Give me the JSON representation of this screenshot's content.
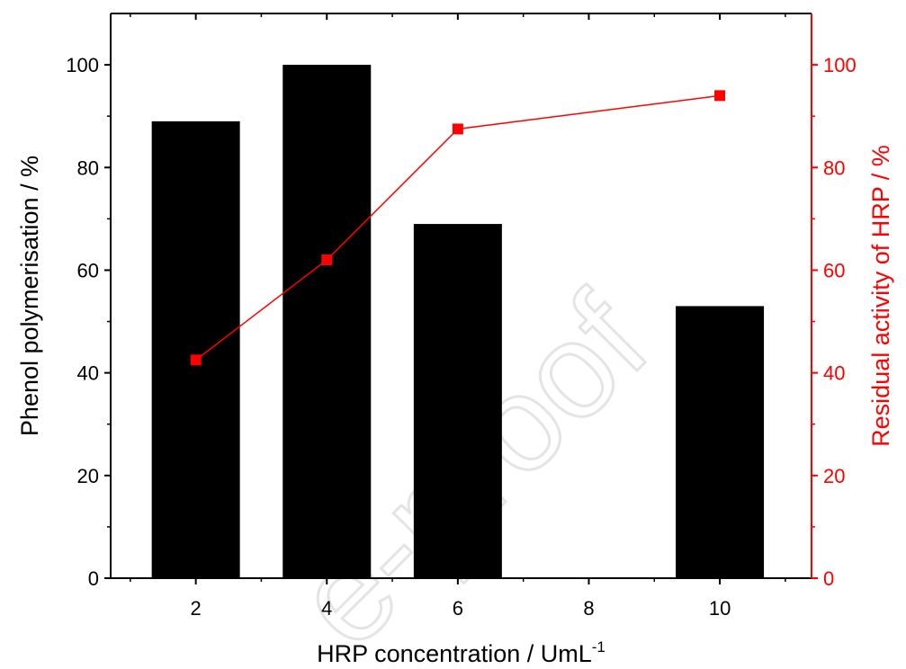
{
  "chart_data": {
    "type": "bar+line",
    "categories": [
      2,
      4,
      6,
      8,
      10
    ],
    "bar_series": {
      "values": [
        89,
        100,
        69,
        null,
        53
      ],
      "color": "#000000",
      "axis": "left"
    },
    "line_series": {
      "x": [
        2,
        4,
        6,
        10
      ],
      "values": [
        42.5,
        62,
        87.5,
        94
      ],
      "color": "#ff0000",
      "axis": "right",
      "marker": "square"
    },
    "x_axis": {
      "label_main": "HRP concentration / UmL",
      "label_sup": "-1",
      "ticks": [
        "2",
        "4",
        "6",
        "8",
        "10"
      ],
      "xlim": [
        0.7,
        11.4
      ]
    },
    "y_left": {
      "label": "Phenol polymerisation / %",
      "ticks": [
        "0",
        "20",
        "40",
        "60",
        "80",
        "100"
      ],
      "ylim": [
        0,
        110
      ],
      "color": "#000000"
    },
    "y_right": {
      "label": "Residual activity of HRP / %",
      "ticks": [
        "0",
        "20",
        "40",
        "60",
        "80",
        "100"
      ],
      "ylim": [
        0,
        110
      ],
      "color": "#ff0000"
    },
    "grid": false,
    "legend": "none",
    "watermark": "e-proof"
  }
}
